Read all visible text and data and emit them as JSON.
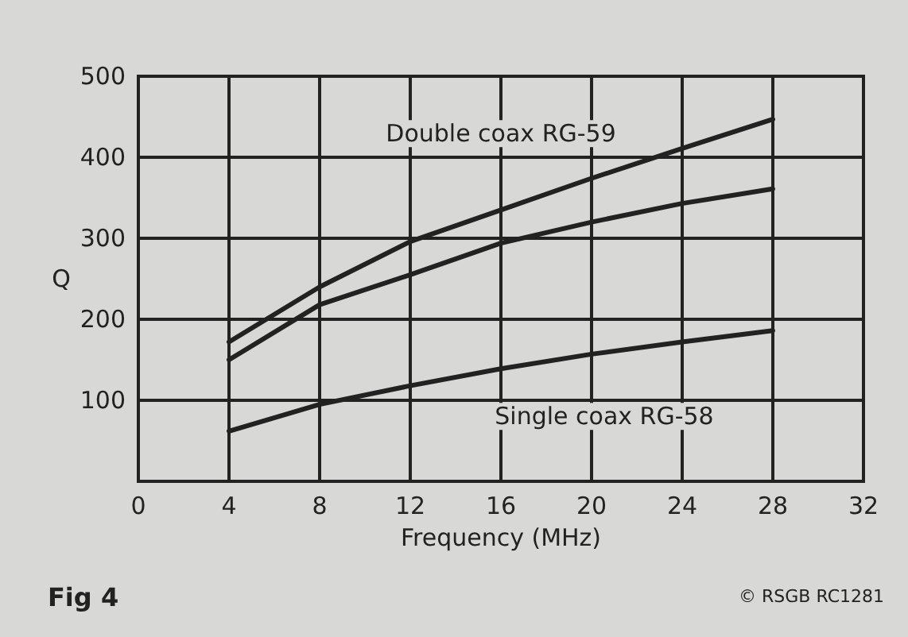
{
  "chart_data": {
    "type": "line",
    "x": [
      4,
      8,
      12,
      16,
      20,
      24,
      28
    ],
    "series": [
      {
        "name": "Double coax RG-59",
        "color": "#222222",
        "values": [
          172,
          240,
          296,
          335,
          374,
          411,
          447
        ]
      },
      {
        "color": "#222222",
        "values": [
          150,
          218,
          255,
          294,
          320,
          343,
          361
        ]
      },
      {
        "name": "Single coax RG-58",
        "color": "#222222",
        "values": [
          62,
          95,
          118,
          139,
          157,
          172,
          186
        ]
      }
    ],
    "xlabel": "Frequency (MHz)",
    "ylabel": "Q",
    "xlim": [
      0,
      32
    ],
    "xticks": [
      0,
      4,
      8,
      12,
      16,
      20,
      24,
      28,
      32
    ],
    "ylim": [
      0,
      500
    ],
    "yticks": [
      {
        "value": 0,
        "label": null
      },
      100,
      200,
      300,
      400,
      500
    ],
    "grid": true,
    "marker": "none",
    "line_style": "solid",
    "annotations": [
      "Fig 4",
      "© RSGB RC1281"
    ]
  }
}
